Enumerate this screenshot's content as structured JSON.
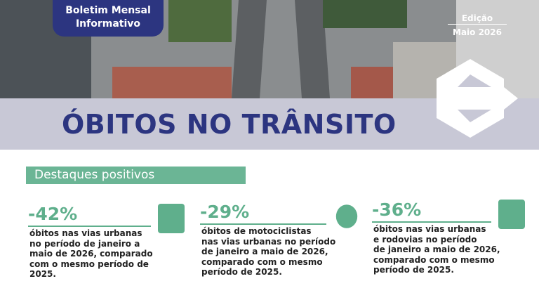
{
  "header": {
    "badge": [
      "Boletim Mensal",
      "Informativo"
    ],
    "edition_label": "Edição",
    "edition": "Maio 2026"
  },
  "title": "ÓBITOS NO TRÂNSITO",
  "section": "Destaques positivos",
  "highlights": [
    {
      "value": "-42%",
      "text": [
        "óbitos nas vias urbanas",
        "no período de janeiro a",
        "maio de  2026, comparado",
        "com o mesmo período de",
        "2025."
      ]
    },
    {
      "value": "-29%",
      "text": [
        "óbitos de motociclistas",
        "nas vias urbanas no período",
        "de janeiro a maio de  2026,",
        "comparado com o mesmo",
        "período de 2025."
      ]
    },
    {
      "value": "-36%",
      "text": [
        "óbitos nas vias urbanas",
        "e rodovias no período",
        "de janeiro a maio de 2026,",
        "comparado com o mesmo",
        "período de 2025."
      ]
    }
  ]
}
